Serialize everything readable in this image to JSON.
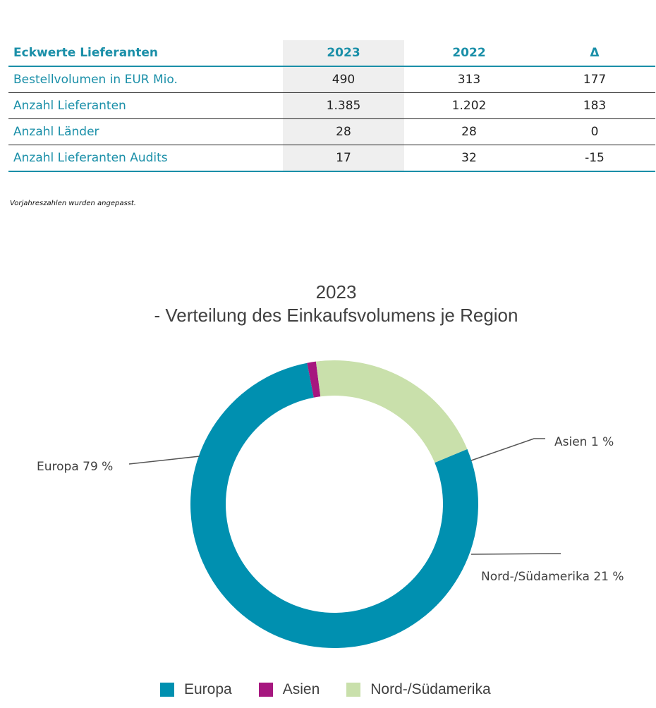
{
  "table": {
    "headers": [
      "Eckwerte Lieferanten",
      "2023",
      "2022",
      "Δ"
    ],
    "rows": [
      [
        "Bestellvolumen in EUR Mio.",
        "490",
        "313",
        "177"
      ],
      [
        "Anzahl Lieferanten",
        "1.385",
        "1.202",
        "183"
      ],
      [
        "Anzahl Länder",
        "28",
        "28",
        "0"
      ],
      [
        "Anzahl Lieferanten Audits",
        "17",
        "32",
        "-15"
      ]
    ]
  },
  "footnote": "Vorjahreszahlen wurden angepasst.",
  "chart_data": {
    "type": "pie",
    "title_line1": "2023",
    "title_line2": "- Verteilung des Einkaufsvolumens je Region",
    "donut": true,
    "categories": [
      "Europa",
      "Asien",
      "Nord-/Südamerika"
    ],
    "values": [
      79,
      1,
      21
    ],
    "data_labels": [
      "Europa 79 %",
      "Asien 1 %",
      "Nord-/Südamerika 21 %"
    ],
    "colors": [
      "#0090b0",
      "#a6177f",
      "#c9e0ab"
    ],
    "legend_position": "bottom"
  }
}
